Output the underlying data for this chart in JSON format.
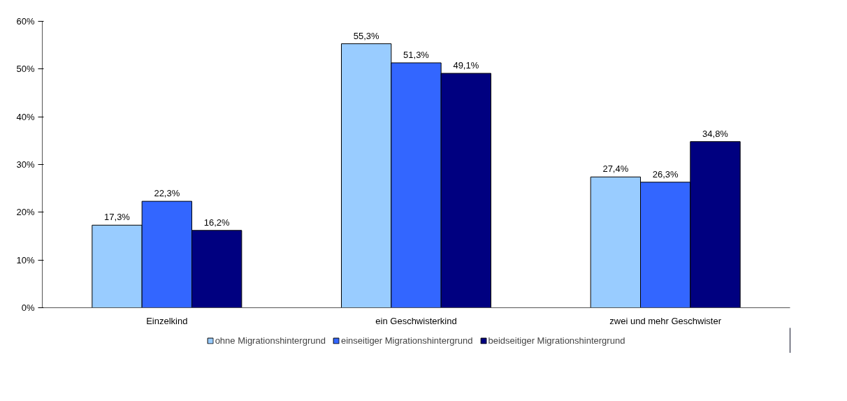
{
  "chart_data": {
    "type": "bar",
    "categories": [
      "Einzelkind",
      "ein Geschwisterkind",
      "zwei und mehr Geschwister"
    ],
    "series": [
      {
        "name": "ohne Migrationshintergrund",
        "color": "#99ccff",
        "values": [
          17.3,
          55.3,
          27.4
        ],
        "value_labels": [
          "17,3%",
          "55,3%",
          "27,4%"
        ]
      },
      {
        "name": "einseitiger Migrationshintergrund",
        "color": "#3366ff",
        "values": [
          22.3,
          51.3,
          26.3
        ],
        "value_labels": [
          "22,3%",
          "51,3%",
          "26,3%"
        ]
      },
      {
        "name": "beidseitiger Migrationshintergrund",
        "color": "#000080",
        "values": [
          16.2,
          49.1,
          34.8
        ],
        "value_labels": [
          "16,2%",
          "49,1%",
          "34,8%"
        ]
      }
    ],
    "ylim": [
      0,
      60
    ],
    "yticks": [
      {
        "value": 0,
        "label": "0%"
      },
      {
        "value": 10,
        "label": "10%"
      },
      {
        "value": 20,
        "label": "20%"
      },
      {
        "value": 30,
        "label": "30%"
      },
      {
        "value": 40,
        "label": "40%"
      },
      {
        "value": 50,
        "label": "50%"
      },
      {
        "value": 60,
        "label": "60%"
      }
    ],
    "grid": false,
    "legend": "bottom"
  }
}
